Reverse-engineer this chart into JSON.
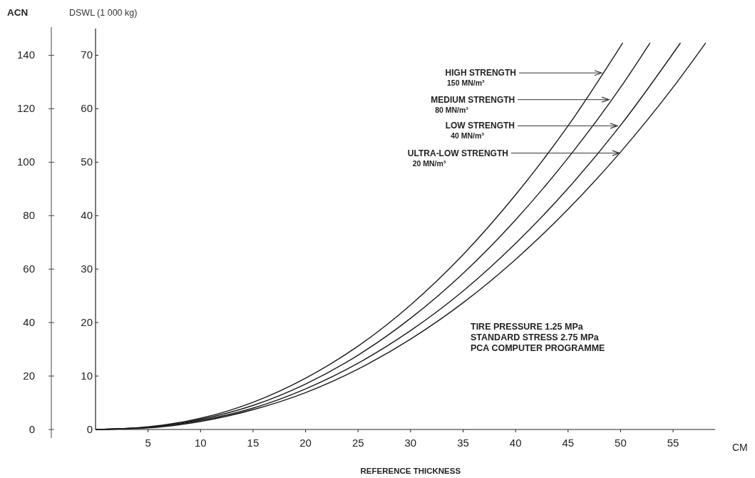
{
  "chart_data": {
    "type": "line",
    "xlabel": "REFERENCE THICKNESS",
    "ylabel": "DSWL (1 000 kg)",
    "y2label": "ACN",
    "xlim": [
      0,
      59
    ],
    "xticks": [
      5,
      10,
      15,
      20,
      25,
      30,
      35,
      40,
      45,
      50,
      55
    ],
    "ylim": [
      0,
      75
    ],
    "yticks": [
      0,
      10,
      20,
      30,
      40,
      50,
      60,
      70
    ],
    "y2lim": [
      0,
      150
    ],
    "y2ticks": [
      0,
      20,
      40,
      60,
      80,
      100,
      120,
      140
    ],
    "grid": false,
    "marker": "none",
    "line_style": "solid",
    "series": [
      {
        "color": "#1a1a1a",
        "x": [
          0,
          5,
          10,
          15,
          20,
          25,
          30,
          35,
          40,
          45,
          50.2
        ],
        "values": [
          0,
          0.5,
          2.1,
          5.1,
          9.6,
          15.6,
          23.3,
          32.7,
          43.9,
          56.8,
          72.3
        ]
      },
      {
        "color": "#1a1a1a",
        "x": [
          0,
          5,
          10,
          15,
          20,
          25,
          30,
          35,
          40,
          45,
          50,
          52.8
        ],
        "values": [
          0,
          0.4,
          1.9,
          4.5,
          8.5,
          13.9,
          20.8,
          29.2,
          39.2,
          50.8,
          64,
          72.3
        ]
      },
      {
        "color": "#1a1a1a",
        "x": [
          0,
          5,
          10,
          15,
          20,
          25,
          30,
          35,
          40,
          45,
          50,
          55.7
        ],
        "values": [
          0,
          0.4,
          1.7,
          4,
          7.6,
          12.4,
          18.5,
          25.9,
          34.8,
          45.1,
          56.9,
          72.3
        ]
      },
      {
        "color": "#1a1a1a",
        "x": [
          0,
          5,
          10,
          15,
          20,
          25,
          30,
          35,
          40,
          45,
          50,
          55,
          58.1
        ],
        "values": [
          0,
          0.3,
          1.5,
          3.7,
          6.9,
          11.3,
          16.9,
          23.7,
          31.8,
          41.2,
          51.9,
          64,
          72.3
        ]
      }
    ],
    "annotations": [
      {
        "text": "HIGH STRENGTH\n150 MN/m³",
        "x": 48.2,
        "y": 66.7
      },
      {
        "text": "MEDIUM STRENGTH\n80 MN/m³",
        "x": 48.9,
        "y": 61.7
      },
      {
        "text": "LOW STRENGTH\n40 MN/m³",
        "x": 49.7,
        "y": 56.8
      },
      {
        "text": "ULTRA-LOW STRENGTH\n20 MN/m³",
        "x": 49.9,
        "y": 51.7
      },
      "CM",
      "TIRE PRESSURE 1.25 MPa\nSTANDARD STRESS 2.75 MPa\nPCA COMPUTER PROGRAMME"
    ]
  }
}
